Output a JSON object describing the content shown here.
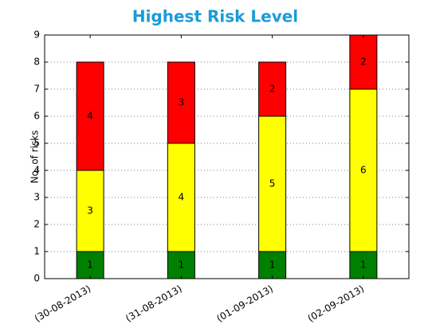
{
  "chart_data": {
    "type": "stacked-bar",
    "title": "Highest Risk Level",
    "y_label": "No. of risks",
    "categories": [
      "(30-08-2013)",
      "(31-08-2013)",
      "(01-09-2013)",
      "(02-09-2013)"
    ],
    "series": [
      {
        "color": "#008000",
        "values": [
          1,
          1,
          1,
          1
        ]
      },
      {
        "color": "#ffff00",
        "values": [
          3,
          4,
          5,
          6
        ]
      },
      {
        "color": "#ff0000",
        "values": [
          4,
          3,
          2,
          2
        ]
      }
    ],
    "ylim": [
      0,
      9
    ],
    "yticks": [
      0,
      1,
      2,
      3,
      4,
      5,
      6,
      7,
      8,
      9
    ],
    "grid": true
  }
}
